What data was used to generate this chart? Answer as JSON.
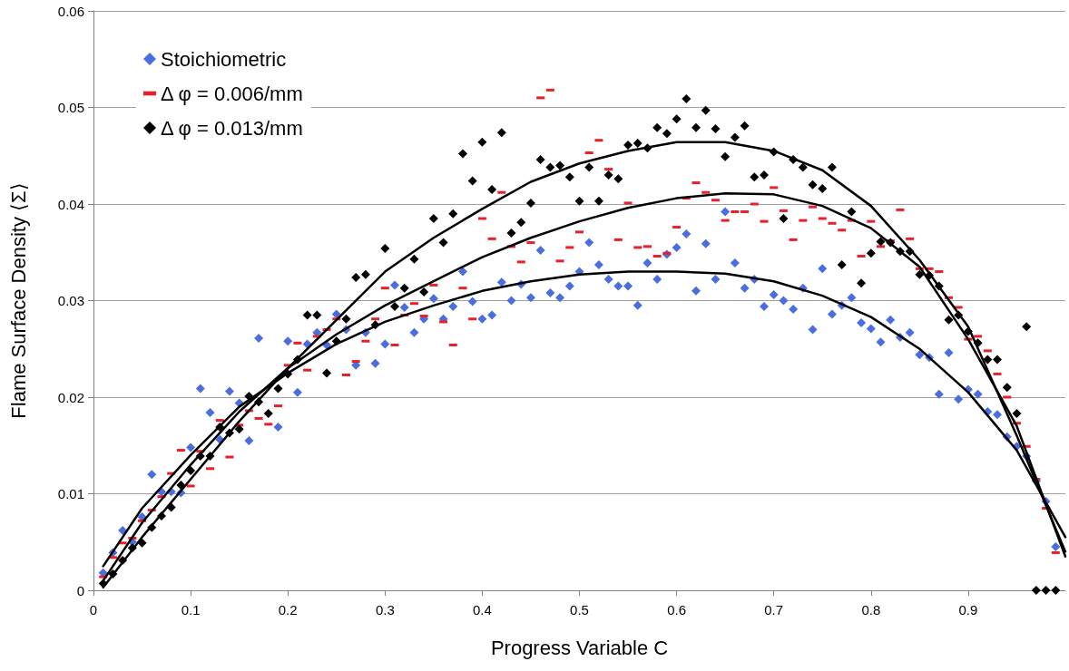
{
  "chart_data": {
    "type": "scatter",
    "xlabel": "Progress Variable C",
    "ylabel": "Flame Surface Density ⟨Σ⟩",
    "xlim": [
      0,
      1
    ],
    "xticks": [
      0,
      0.1,
      0.2,
      0.3,
      0.4,
      0.5,
      0.6,
      0.7,
      0.8,
      0.9
    ],
    "ylim": [
      0,
      0.06
    ],
    "yticks": [
      0,
      0.01,
      0.02,
      0.03,
      0.04,
      0.05,
      0.06
    ],
    "grid": "y",
    "legend": "top left",
    "x": [
      0.01,
      0.02,
      0.03,
      0.04,
      0.05,
      0.06,
      0.07,
      0.08,
      0.09,
      0.1,
      0.11,
      0.12,
      0.13,
      0.14,
      0.15,
      0.16,
      0.17,
      0.18,
      0.19,
      0.2,
      0.21,
      0.22,
      0.23,
      0.24,
      0.25,
      0.26,
      0.27,
      0.28,
      0.29,
      0.3,
      0.31,
      0.32,
      0.33,
      0.34,
      0.35,
      0.36,
      0.37,
      0.38,
      0.39,
      0.4,
      0.41,
      0.42,
      0.43,
      0.44,
      0.45,
      0.46,
      0.47,
      0.48,
      0.49,
      0.5,
      0.51,
      0.52,
      0.53,
      0.54,
      0.55,
      0.56,
      0.57,
      0.58,
      0.59,
      0.6,
      0.61,
      0.62,
      0.63,
      0.64,
      0.65,
      0.66,
      0.67,
      0.68,
      0.69,
      0.7,
      0.71,
      0.72,
      0.73,
      0.74,
      0.75,
      0.76,
      0.77,
      0.78,
      0.79,
      0.8,
      0.81,
      0.82,
      0.83,
      0.84,
      0.85,
      0.86,
      0.87,
      0.88,
      0.89,
      0.9,
      0.91,
      0.92,
      0.93,
      0.94,
      0.95,
      0.96,
      0.97,
      0.98,
      0.99
    ],
    "series": [
      {
        "name": "Stoichiometric",
        "marker": "diamond",
        "color": "#4a6ee0",
        "values": [
          0.0018,
          0.0039,
          0.0062,
          0.005,
          0.0076,
          0.012,
          0.0102,
          0.0102,
          0.0101,
          0.0148,
          0.0209,
          0.0184,
          0.0156,
          0.0206,
          0.0194,
          0.0155,
          0.0261,
          null,
          0.0169,
          0.0258,
          0.0205,
          0.0255,
          0.0267,
          0.0254,
          0.0286,
          0.027,
          0.0233,
          0.0267,
          0.0235,
          0.0255,
          0.0316,
          0.0293,
          0.0267,
          0.0281,
          0.0302,
          0.0281,
          0.0294,
          0.033,
          0.0299,
          0.0281,
          0.0285,
          0.0319,
          0.03,
          0.0317,
          0.0303,
          0.0352,
          0.0308,
          0.0303,
          0.0315,
          0.033,
          0.036,
          0.0337,
          0.0322,
          0.0315,
          0.0315,
          0.0295,
          0.0339,
          0.0322,
          0.0348,
          0.0355,
          0.0369,
          0.031,
          0.0359,
          0.0322,
          0.0392,
          0.0339,
          0.0313,
          0.0322,
          0.0294,
          0.0306,
          0.03,
          0.0291,
          0.0313,
          0.027,
          0.0333,
          0.0286,
          0.0295,
          0.0303,
          0.0277,
          0.0271,
          0.0257,
          0.028,
          0.0262,
          0.0267,
          0.0244,
          0.0241,
          0.0203,
          0.0246,
          0.0198,
          0.0208,
          0.0203,
          0.0185,
          0.0182,
          0.0159,
          0.0149,
          0.0139,
          0.0113,
          0.0092,
          0.0045
        ]
      },
      {
        "name": "Δ φ = 0.006/mm",
        "marker": "square",
        "color": "#e8202a",
        "values": [
          0.0014,
          0.0034,
          0.0049,
          0.0054,
          0.0072,
          0.0083,
          0.0097,
          0.0121,
          0.0145,
          0.0108,
          0.0144,
          0.0126,
          0.0176,
          0.0138,
          0.0171,
          0.0186,
          0.0178,
          0.0172,
          0.0191,
          0.0233,
          0.0256,
          0.0228,
          0.0263,
          0.027,
          0.0281,
          0.0223,
          0.0237,
          0.0258,
          0.0281,
          0.0313,
          0.0254,
          0.0285,
          0.0297,
          0.0284,
          0.0316,
          0.0278,
          0.0254,
          0.0313,
          0.0281,
          0.0385,
          0.0364,
          0.0412,
          0.0356,
          0.034,
          0.036,
          0.051,
          0.0518,
          0.0341,
          0.0355,
          0.0371,
          0.0453,
          0.0466,
          0.0436,
          0.0363,
          0.0401,
          0.0355,
          0.0356,
          0.0346,
          0.0349,
          0.0376,
          0.0406,
          0.0422,
          0.0412,
          0.0404,
          0.0383,
          0.0392,
          0.0392,
          0.04,
          0.0382,
          0.0417,
          0.0393,
          0.0363,
          0.0383,
          0.0397,
          0.0385,
          0.038,
          0.0373,
          0.0383,
          0.0346,
          0.0382,
          0.0356,
          0.0362,
          0.0394,
          0.0364,
          0.0333,
          0.0333,
          0.033,
          0.0303,
          0.0293,
          0.026,
          0.0263,
          0.0248,
          0.0224,
          0.02,
          0.0173,
          0.0149,
          0.0115,
          0.0085,
          0.0039
        ]
      },
      {
        "name": "Δ φ = 0.013/mm",
        "marker": "diamond",
        "color": "#000000",
        "values": [
          0.0007,
          0.0017,
          0.0031,
          0.0044,
          0.0049,
          0.0065,
          0.0077,
          0.0086,
          0.0109,
          0.0124,
          0.0139,
          0.0139,
          0.0169,
          0.0163,
          0.0167,
          0.0201,
          0.0195,
          0.0183,
          0.0209,
          0.0224,
          0.0239,
          0.0285,
          0.0285,
          0.0225,
          0.0258,
          0.0281,
          0.0324,
          0.0327,
          0.0275,
          0.0354,
          0.0294,
          0.0313,
          0.0343,
          0.0309,
          0.0385,
          0.036,
          0.039,
          0.0452,
          0.0424,
          0.0464,
          0.0415,
          0.0474,
          0.037,
          0.0381,
          0.0401,
          0.0446,
          0.0438,
          0.044,
          0.0428,
          0.0403,
          0.0438,
          0.0403,
          0.043,
          0.0426,
          0.0461,
          0.0463,
          0.0458,
          0.0479,
          0.0473,
          0.0488,
          0.0509,
          0.0479,
          0.0497,
          0.0478,
          0.0449,
          0.0469,
          0.0481,
          0.0428,
          0.043,
          0.0454,
          0.0385,
          0.0446,
          0.0438,
          0.042,
          0.0416,
          0.0438,
          0.0337,
          0.0392,
          0.0318,
          0.0349,
          0.0361,
          0.036,
          0.0351,
          0.0351,
          0.0327,
          0.0326,
          0.0315,
          0.028,
          0.0285,
          0.0268,
          0.0256,
          0.0239,
          0.0239,
          0.021,
          0.0183,
          0.0273,
          0,
          0,
          0
        ]
      },
      {
        "type": "line",
        "marker": "none",
        "color": "#000000",
        "x": [
          0.01,
          0.05,
          0.1,
          0.15,
          0.2,
          0.25,
          0.3,
          0.35,
          0.4,
          0.45,
          0.5,
          0.55,
          0.6,
          0.65,
          0.7,
          0.75,
          0.8,
          0.85,
          0.9,
          0.95,
          1
        ],
        "values": [
          0.0025,
          0.0085,
          0.014,
          0.019,
          0.0225,
          0.0255,
          0.0278,
          0.0295,
          0.031,
          0.032,
          0.0327,
          0.033,
          0.033,
          0.0328,
          0.032,
          0.0305,
          0.0283,
          0.025,
          0.0205,
          0.0145,
          0.0055
        ]
      },
      {
        "type": "line",
        "marker": "none",
        "color": "#000000",
        "x": [
          0.01,
          0.05,
          0.1,
          0.15,
          0.2,
          0.25,
          0.3,
          0.35,
          0.4,
          0.45,
          0.5,
          0.55,
          0.6,
          0.65,
          0.7,
          0.75,
          0.8,
          0.85,
          0.9,
          0.95,
          1
        ],
        "values": [
          0.001,
          0.007,
          0.013,
          0.0185,
          0.023,
          0.0265,
          0.0295,
          0.032,
          0.0345,
          0.0365,
          0.0382,
          0.0396,
          0.0406,
          0.0411,
          0.041,
          0.0398,
          0.0375,
          0.0335,
          0.026,
          0.017,
          0.0035
        ]
      },
      {
        "type": "line",
        "marker": "none",
        "color": "#000000",
        "x": [
          0.01,
          0.05,
          0.1,
          0.15,
          0.2,
          0.25,
          0.3,
          0.35,
          0.4,
          0.45,
          0.5,
          0.55,
          0.6,
          0.65,
          0.7,
          0.75,
          0.8,
          0.85,
          0.9,
          0.95,
          1
        ],
        "values": [
          0.0003,
          0.0055,
          0.0115,
          0.0175,
          0.023,
          0.028,
          0.033,
          0.0365,
          0.0395,
          0.0423,
          0.0442,
          0.0455,
          0.0464,
          0.0464,
          0.0455,
          0.0435,
          0.0398,
          0.0342,
          0.0273,
          0.016,
          0.004
        ]
      }
    ]
  }
}
